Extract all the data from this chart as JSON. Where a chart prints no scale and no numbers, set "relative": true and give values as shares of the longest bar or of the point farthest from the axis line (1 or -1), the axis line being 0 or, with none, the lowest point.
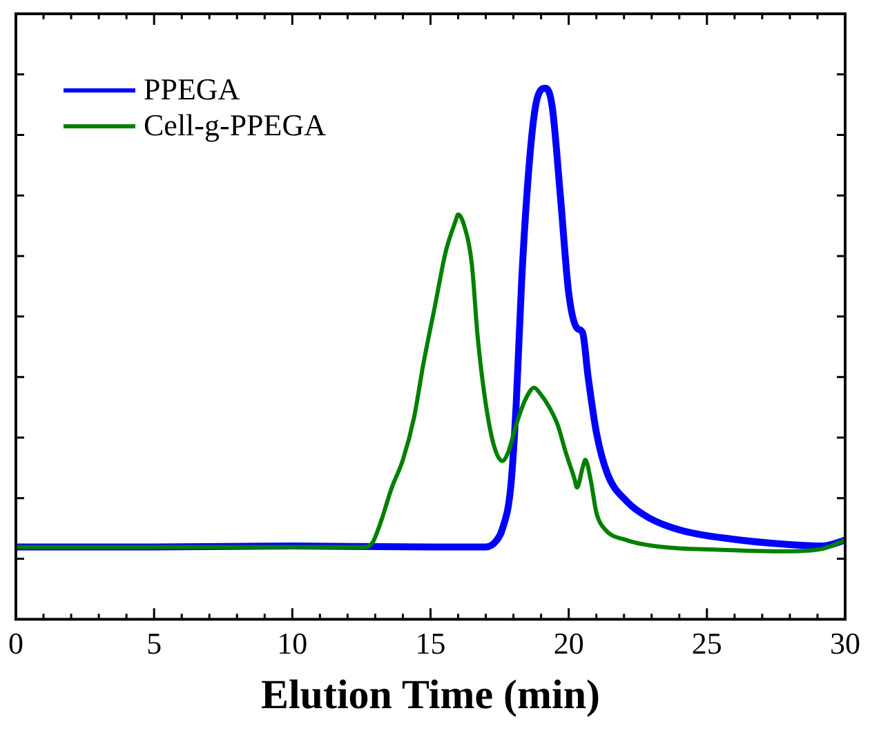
{
  "chart_data": {
    "type": "line",
    "xlabel": "Elution Time (min)",
    "relative": true,
    "xlim": [
      0,
      30
    ],
    "xticks": [
      0,
      5,
      10,
      15,
      20,
      25,
      30
    ],
    "tick_labels": "x",
    "legend": "top left",
    "marker": "none",
    "line_style": "solid",
    "grid": false,
    "series": [
      {
        "name": "PPEGA",
        "color": "#0000ff",
        "x": [
          0,
          5,
          10,
          15,
          17.0,
          17.4,
          17.6,
          17.9,
          18.1,
          18.3,
          18.6,
          18.85,
          19.16,
          19.4,
          19.7,
          20.0,
          20.3,
          20.5,
          20.7,
          21.0,
          21.4,
          22.1,
          22.9,
          24.1,
          25.9,
          27.9,
          29.2,
          30
        ],
        "values": [
          0.136,
          0.136,
          0.138,
          0.136,
          0.136,
          0.149,
          0.17,
          0.248,
          0.405,
          0.64,
          0.875,
          0.979,
          1,
          0.966,
          0.796,
          0.614,
          0.548,
          0.54,
          0.457,
          0.352,
          0.274,
          0.222,
          0.191,
          0.167,
          0.151,
          0.141,
          0.138,
          0.149
        ]
      },
      {
        "name": "Cell-g-PPEGA",
        "color": "#008000",
        "x": [
          0,
          5,
          10,
          12.6,
          12.9,
          13.2,
          13.6,
          14.0,
          14.4,
          14.75,
          15.15,
          15.55,
          15.9,
          16.0,
          16.2,
          16.5,
          16.7,
          17.0,
          17.3,
          17.6,
          17.8,
          18.1,
          18.4,
          18.75,
          18.95,
          19.3,
          19.6,
          19.9,
          20.2,
          20.3,
          20.5,
          20.6,
          20.8,
          21.0,
          21.3,
          22.1,
          23.4,
          25.4,
          27.9,
          29.2,
          30
        ],
        "values": [
          0.136,
          0.136,
          0.136,
          0.136,
          0.144,
          0.183,
          0.248,
          0.3,
          0.379,
          0.483,
          0.587,
          0.692,
          0.749,
          0.762,
          0.744,
          0.666,
          0.535,
          0.405,
          0.326,
          0.298,
          0.313,
          0.366,
          0.41,
          0.436,
          0.426,
          0.399,
          0.366,
          0.313,
          0.266,
          0.248,
          0.285,
          0.3,
          0.261,
          0.201,
          0.17,
          0.149,
          0.136,
          0.131,
          0.128,
          0.133,
          0.149
        ]
      }
    ]
  }
}
